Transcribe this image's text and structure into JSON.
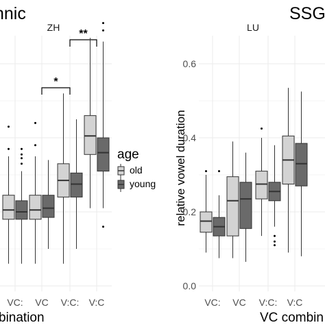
{
  "figure": {
    "left_title_fragment": "nnic",
    "right_title_fragment": "SSG"
  },
  "legend": {
    "title": "age",
    "entries": [
      {
        "label": "old",
        "color": "#d3d3d3"
      },
      {
        "label": "young",
        "color": "#6a6a6a"
      }
    ]
  },
  "colors": {
    "old": "#d3d3d3",
    "young": "#6a6a6a",
    "panel_bg": "#ffffff",
    "grid": "#ebebeb",
    "strip_text": "#1a1a1a"
  },
  "chart_data": [
    {
      "type": "boxplot",
      "strip_label": "ZH",
      "xlabel": "bination",
      "ylabel": "",
      "categories": [
        "VC:",
        "VC",
        "V:C:",
        "V:C"
      ],
      "grid": true,
      "significance": [
        {
          "from": "V:C:",
          "to": "V:C",
          "label": "**"
        },
        {
          "from": "VC",
          "to": "V:C:",
          "label": "*"
        }
      ],
      "series": [
        {
          "name": "old",
          "boxes": [
            {
              "whislo": 0.06,
              "q1": 0.18,
              "med": 0.205,
              "q3": 0.245,
              "whishi": 0.35,
              "fliers": [
                0.37,
                0.43
              ]
            },
            {
              "whislo": 0.06,
              "q1": 0.18,
              "med": 0.205,
              "q3": 0.245,
              "whishi": 0.35,
              "fliers": [
                0.38,
                0.44
              ]
            },
            {
              "whislo": 0.06,
              "q1": 0.24,
              "med": 0.285,
              "q3": 0.33,
              "whishi": 0.52,
              "fliers": []
            },
            {
              "whislo": 0.21,
              "q1": 0.355,
              "med": 0.405,
              "q3": 0.46,
              "whishi": 0.67,
              "fliers": []
            }
          ]
        },
        {
          "name": "young",
          "boxes": [
            {
              "whislo": 0.06,
              "q1": 0.18,
              "med": 0.2,
              "q3": 0.23,
              "whishi": 0.31,
              "fliers": [
                0.33,
                0.345,
                0.355,
                0.37
              ]
            },
            {
              "whislo": 0.1,
              "q1": 0.185,
              "med": 0.21,
              "q3": 0.245,
              "whishi": 0.34,
              "fliers": []
            },
            {
              "whislo": 0.1,
              "q1": 0.24,
              "med": 0.275,
              "q3": 0.305,
              "whishi": 0.45,
              "fliers": []
            },
            {
              "whislo": 0.21,
              "q1": 0.31,
              "med": 0.36,
              "q3": 0.4,
              "whishi": 0.66,
              "fliers": [
                0.16,
                0.69,
                0.71
              ]
            }
          ]
        }
      ]
    },
    {
      "type": "boxplot",
      "strip_label": "LU",
      "xlabel": "VC combin",
      "ylabel": "relative vowel duration",
      "categories": [
        "VC:",
        "VC",
        "V:C:",
        "V:C"
      ],
      "ylim": [
        -0.02,
        0.66
      ],
      "yticks": [
        0.0,
        0.2,
        0.4,
        0.6
      ],
      "ytick_labels": [
        "0.0",
        "0.2",
        "0.4",
        "0.6"
      ],
      "grid": true,
      "series": [
        {
          "name": "old",
          "boxes": [
            {
              "whislo": 0.09,
              "q1": 0.145,
              "med": 0.175,
              "q3": 0.2,
              "whishi": 0.3,
              "fliers": [
                0.31
              ]
            },
            {
              "whislo": 0.075,
              "q1": 0.135,
              "med": 0.23,
              "q3": 0.295,
              "whishi": 0.39,
              "fliers": []
            },
            {
              "whislo": 0.135,
              "q1": 0.235,
              "med": 0.275,
              "q3": 0.31,
              "whishi": 0.4,
              "fliers": [
                0.425
              ]
            },
            {
              "whislo": 0.09,
              "q1": 0.275,
              "med": 0.34,
              "q3": 0.405,
              "whishi": 0.535,
              "fliers": []
            }
          ]
        },
        {
          "name": "young",
          "boxes": [
            {
              "whislo": 0.075,
              "q1": 0.135,
              "med": 0.16,
              "q3": 0.185,
              "whishi": 0.245,
              "fliers": [
                0.31
              ]
            },
            {
              "whislo": 0.065,
              "q1": 0.155,
              "med": 0.235,
              "q3": 0.28,
              "whishi": 0.36,
              "fliers": []
            },
            {
              "whislo": 0.16,
              "q1": 0.23,
              "med": 0.255,
              "q3": 0.28,
              "whishi": 0.38,
              "fliers": [
                0.11,
                0.12,
                0.135
              ]
            },
            {
              "whislo": 0.08,
              "q1": 0.27,
              "med": 0.33,
              "q3": 0.385,
              "whishi": 0.525,
              "fliers": []
            }
          ]
        }
      ]
    }
  ]
}
